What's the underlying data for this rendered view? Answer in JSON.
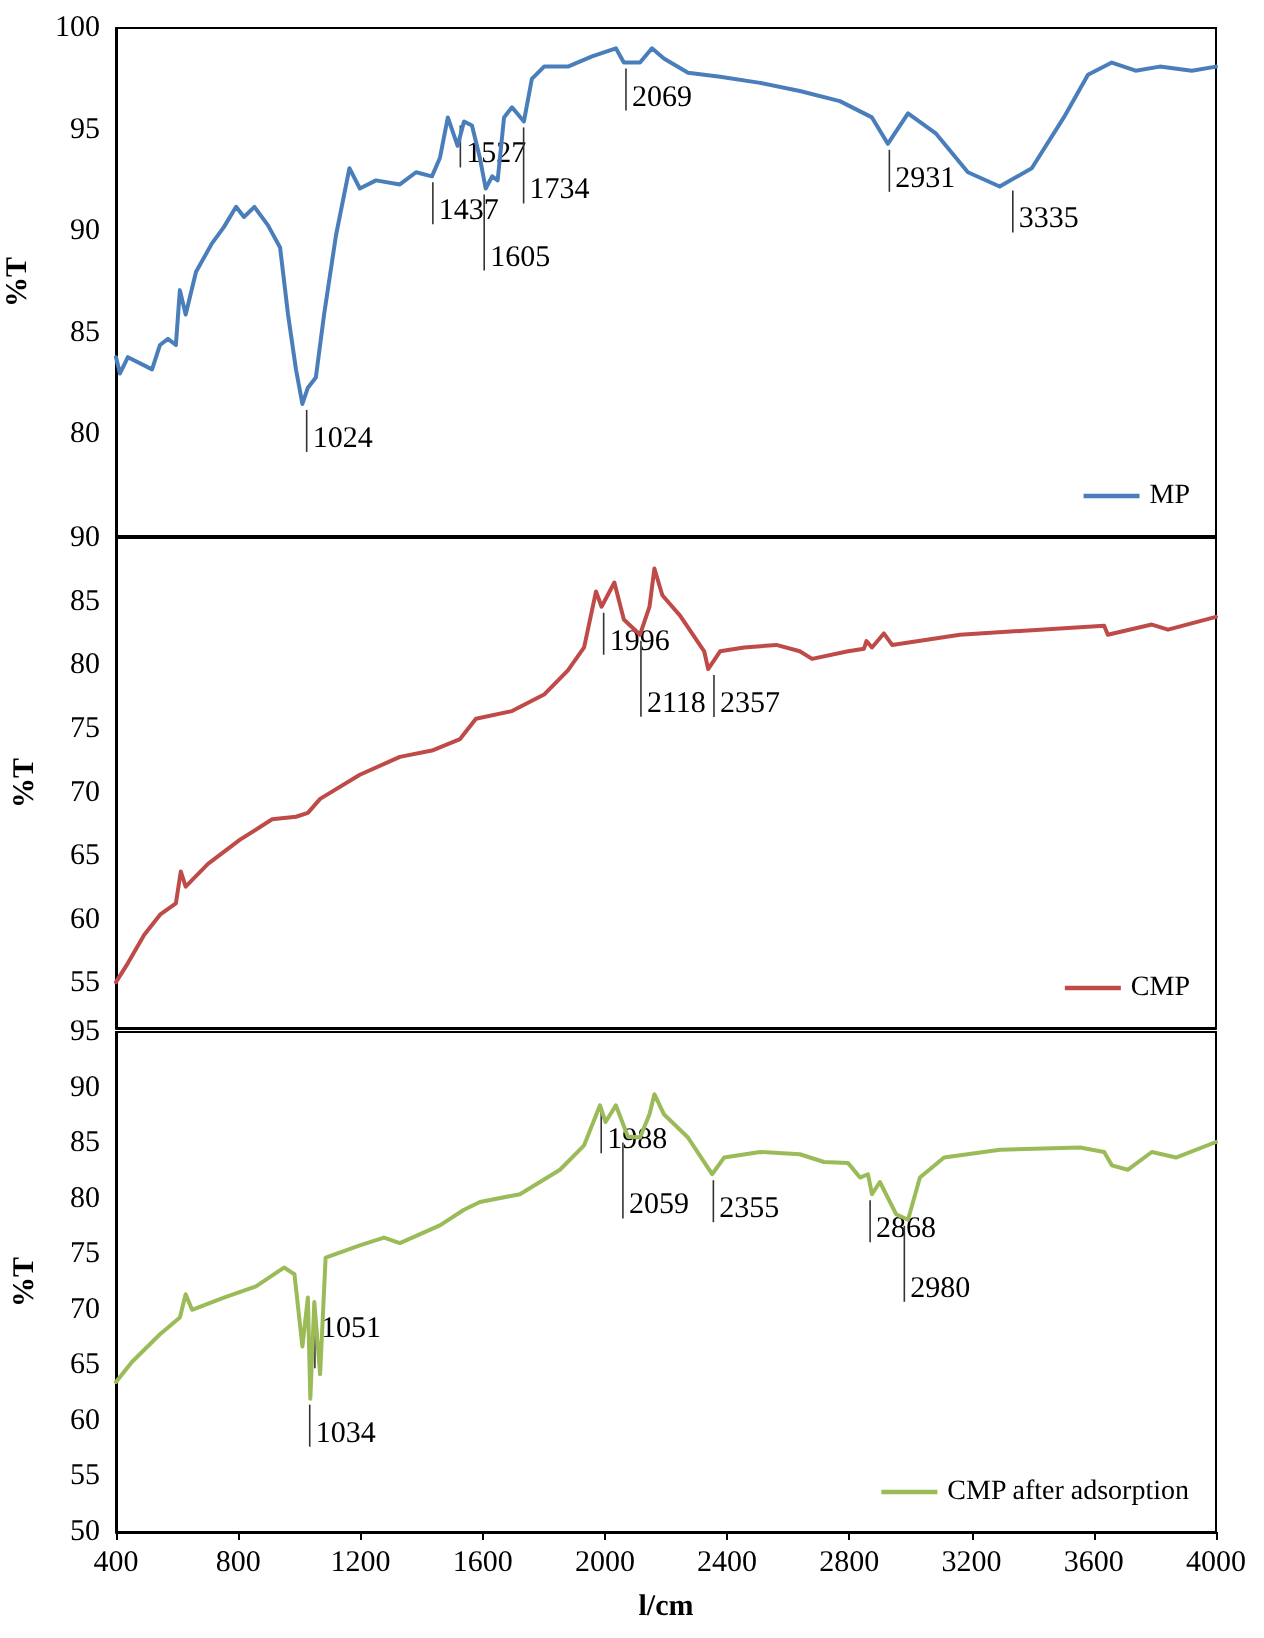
{
  "chart_data": [
    {
      "type": "line",
      "ylabel": "%T",
      "xlim": [
        400,
        4000
      ],
      "ylim": [
        75,
        100
      ],
      "yticks": [
        80,
        85,
        90,
        95,
        100
      ],
      "tick_labels": "y",
      "grid": false,
      "legend": "bottom right",
      "marker": "none",
      "series": [
        {
          "name": "MP",
          "color": "#4a7ebb",
          "x": [
            400,
            413,
            439,
            518,
            544,
            570,
            596,
            609,
            628,
            662,
            714,
            753,
            793,
            819,
            853,
            897,
            937,
            963,
            989,
            1010,
            1028,
            1054,
            1081,
            1120,
            1164,
            1198,
            1251,
            1329,
            1382,
            1434,
            1460,
            1486,
            1518,
            1539,
            1565,
            1591,
            1610,
            1631,
            1649,
            1670,
            1696,
            1735,
            1761,
            1801,
            1879,
            1958,
            2036,
            2062,
            2115,
            2154,
            2193,
            2272,
            2377,
            2508,
            2638,
            2769,
            2874,
            2926,
            2992,
            3084,
            3188,
            3292,
            3397,
            3502,
            3581,
            3659,
            3737,
            3816,
            3921,
            4000
          ],
          "values": [
            83.8,
            83.0,
            83.8,
            83.2,
            84.4,
            84.7,
            84.4,
            87.1,
            85.9,
            88.0,
            89.4,
            90.2,
            91.2,
            90.7,
            91.2,
            90.3,
            89.2,
            85.9,
            83.2,
            81.5,
            82.3,
            82.8,
            85.9,
            89.8,
            93.1,
            92.1,
            92.5,
            92.3,
            92.9,
            92.7,
            93.6,
            95.6,
            94.2,
            95.4,
            95.2,
            93.6,
            92.1,
            92.7,
            92.5,
            95.6,
            96.1,
            95.4,
            97.5,
            98.1,
            98.1,
            98.6,
            99.0,
            98.3,
            98.3,
            99.0,
            98.5,
            97.8,
            97.6,
            97.3,
            96.9,
            96.4,
            95.6,
            94.3,
            95.8,
            94.8,
            92.9,
            92.2,
            93.1,
            95.6,
            97.7,
            98.3,
            97.9,
            98.1,
            97.9,
            98.1
          ]
        }
      ],
      "annotations": [
        {
          "text": "1024",
          "x": 1024,
          "y": 81.5
        },
        {
          "text": "1437",
          "x": 1437,
          "y": 92.7
        },
        {
          "text": "1527",
          "x": 1527,
          "y": 95.5
        },
        {
          "text": "1605",
          "x": 1605,
          "y": 92.1
        },
        {
          "text": "1734",
          "x": 1734,
          "y": 95.4
        },
        {
          "text": "2069",
          "x": 2069,
          "y": 98.3
        },
        {
          "text": "2931",
          "x": 2931,
          "y": 94.3
        },
        {
          "text": "3335",
          "x": 3335,
          "y": 92.3
        }
      ]
    },
    {
      "type": "line",
      "ylabel": "%T",
      "xlim": [
        400,
        4000
      ],
      "ylim": [
        51.5,
        90
      ],
      "yticks": [
        55,
        60,
        65,
        70,
        75,
        80,
        85,
        90
      ],
      "tick_labels": "y",
      "grid": false,
      "legend": "bottom right",
      "marker": "none",
      "series": [
        {
          "name": "CMP",
          "color": "#be4b48",
          "x": [
            400,
            439,
            492,
            544,
            596,
            612,
            628,
            701,
            806,
            911,
            989,
            1028,
            1068,
            1198,
            1329,
            1434,
            1526,
            1578,
            1696,
            1801,
            1879,
            1932,
            1971,
            1989,
            2031,
            2062,
            2115,
            2146,
            2162,
            2188,
            2246,
            2325,
            2338,
            2377,
            2456,
            2561,
            2638,
            2678,
            2796,
            2848,
            2856,
            2874,
            2913,
            2940,
            3162,
            3424,
            3634,
            3646,
            3790,
            3843,
            4000
          ],
          "values": [
            55.1,
            56.6,
            58.8,
            60.4,
            61.3,
            63.8,
            62.6,
            64.4,
            66.3,
            67.9,
            68.1,
            68.4,
            69.5,
            71.4,
            72.8,
            73.3,
            74.2,
            75.8,
            76.4,
            77.7,
            79.6,
            81.4,
            85.8,
            84.6,
            86.5,
            83.6,
            82.4,
            84.6,
            87.6,
            85.5,
            83.9,
            81.1,
            79.7,
            81.1,
            81.4,
            81.6,
            81.1,
            80.5,
            81.1,
            81.3,
            81.9,
            81.4,
            82.5,
            81.6,
            82.4,
            82.8,
            83.1,
            82.4,
            83.2,
            82.8,
            83.8
          ]
        }
      ],
      "annotations": [
        {
          "text": "1996",
          "x": 1996,
          "y": 84.6
        },
        {
          "text": "2118",
          "x": 2118,
          "y": 82.4
        },
        {
          "text": "2357",
          "x": 2357,
          "y": 79.7
        }
      ]
    },
    {
      "type": "line",
      "ylabel": "%T",
      "xlabel": "l/cm",
      "xlim": [
        400,
        4000
      ],
      "xticks": [
        400,
        800,
        1200,
        1600,
        2000,
        2400,
        2800,
        3200,
        3600,
        4000
      ],
      "ylim": [
        50,
        95
      ],
      "yticks": [
        50,
        55,
        60,
        65,
        70,
        75,
        80,
        85,
        90,
        95
      ],
      "grid": false,
      "legend": "bottom right",
      "marker": "none",
      "series": [
        {
          "name": "CMP after adsorption",
          "color": "#9bbb59",
          "x": [
            400,
            452,
            544,
            609,
            628,
            649,
            753,
            858,
            950,
            984,
            1010,
            1028,
            1036,
            1049,
            1068,
            1086,
            1198,
            1277,
            1329,
            1460,
            1539,
            1591,
            1722,
            1853,
            1932,
            1984,
            2002,
            2036,
            2075,
            2115,
            2146,
            2162,
            2193,
            2272,
            2351,
            2390,
            2508,
            2638,
            2717,
            2796,
            2835,
            2861,
            2874,
            2900,
            2953,
            2992,
            3031,
            3110,
            3293,
            3555,
            3634,
            3659,
            3711,
            3790,
            3869,
            4000
          ],
          "values": [
            63.5,
            65.3,
            67.8,
            69.3,
            71.4,
            70.0,
            71.1,
            72.1,
            73.8,
            73.2,
            66.7,
            71.1,
            62.0,
            70.7,
            64.2,
            74.7,
            75.8,
            76.5,
            76.0,
            77.6,
            79.0,
            79.7,
            80.4,
            82.6,
            84.8,
            88.4,
            86.9,
            88.4,
            85.6,
            85.5,
            87.6,
            89.4,
            87.6,
            85.5,
            82.2,
            83.7,
            84.2,
            84.0,
            83.3,
            83.2,
            81.9,
            82.2,
            80.4,
            81.5,
            78.6,
            78.1,
            81.9,
            83.7,
            84.4,
            84.6,
            84.2,
            83.0,
            82.6,
            84.2,
            83.7,
            85.1
          ]
        }
      ],
      "annotations": [
        {
          "text": "1034",
          "x": 1034,
          "y": 62.0
        },
        {
          "text": "1051",
          "x": 1051,
          "y": 64.2
        },
        {
          "text": "1988",
          "x": 1988,
          "y": 88.4
        },
        {
          "text": "2059",
          "x": 2059,
          "y": 85.6
        },
        {
          "text": "2355",
          "x": 2355,
          "y": 82.2
        },
        {
          "text": "2868",
          "x": 2868,
          "y": 80.4
        },
        {
          "text": "2980",
          "x": 2980,
          "y": 78.1
        }
      ]
    }
  ]
}
